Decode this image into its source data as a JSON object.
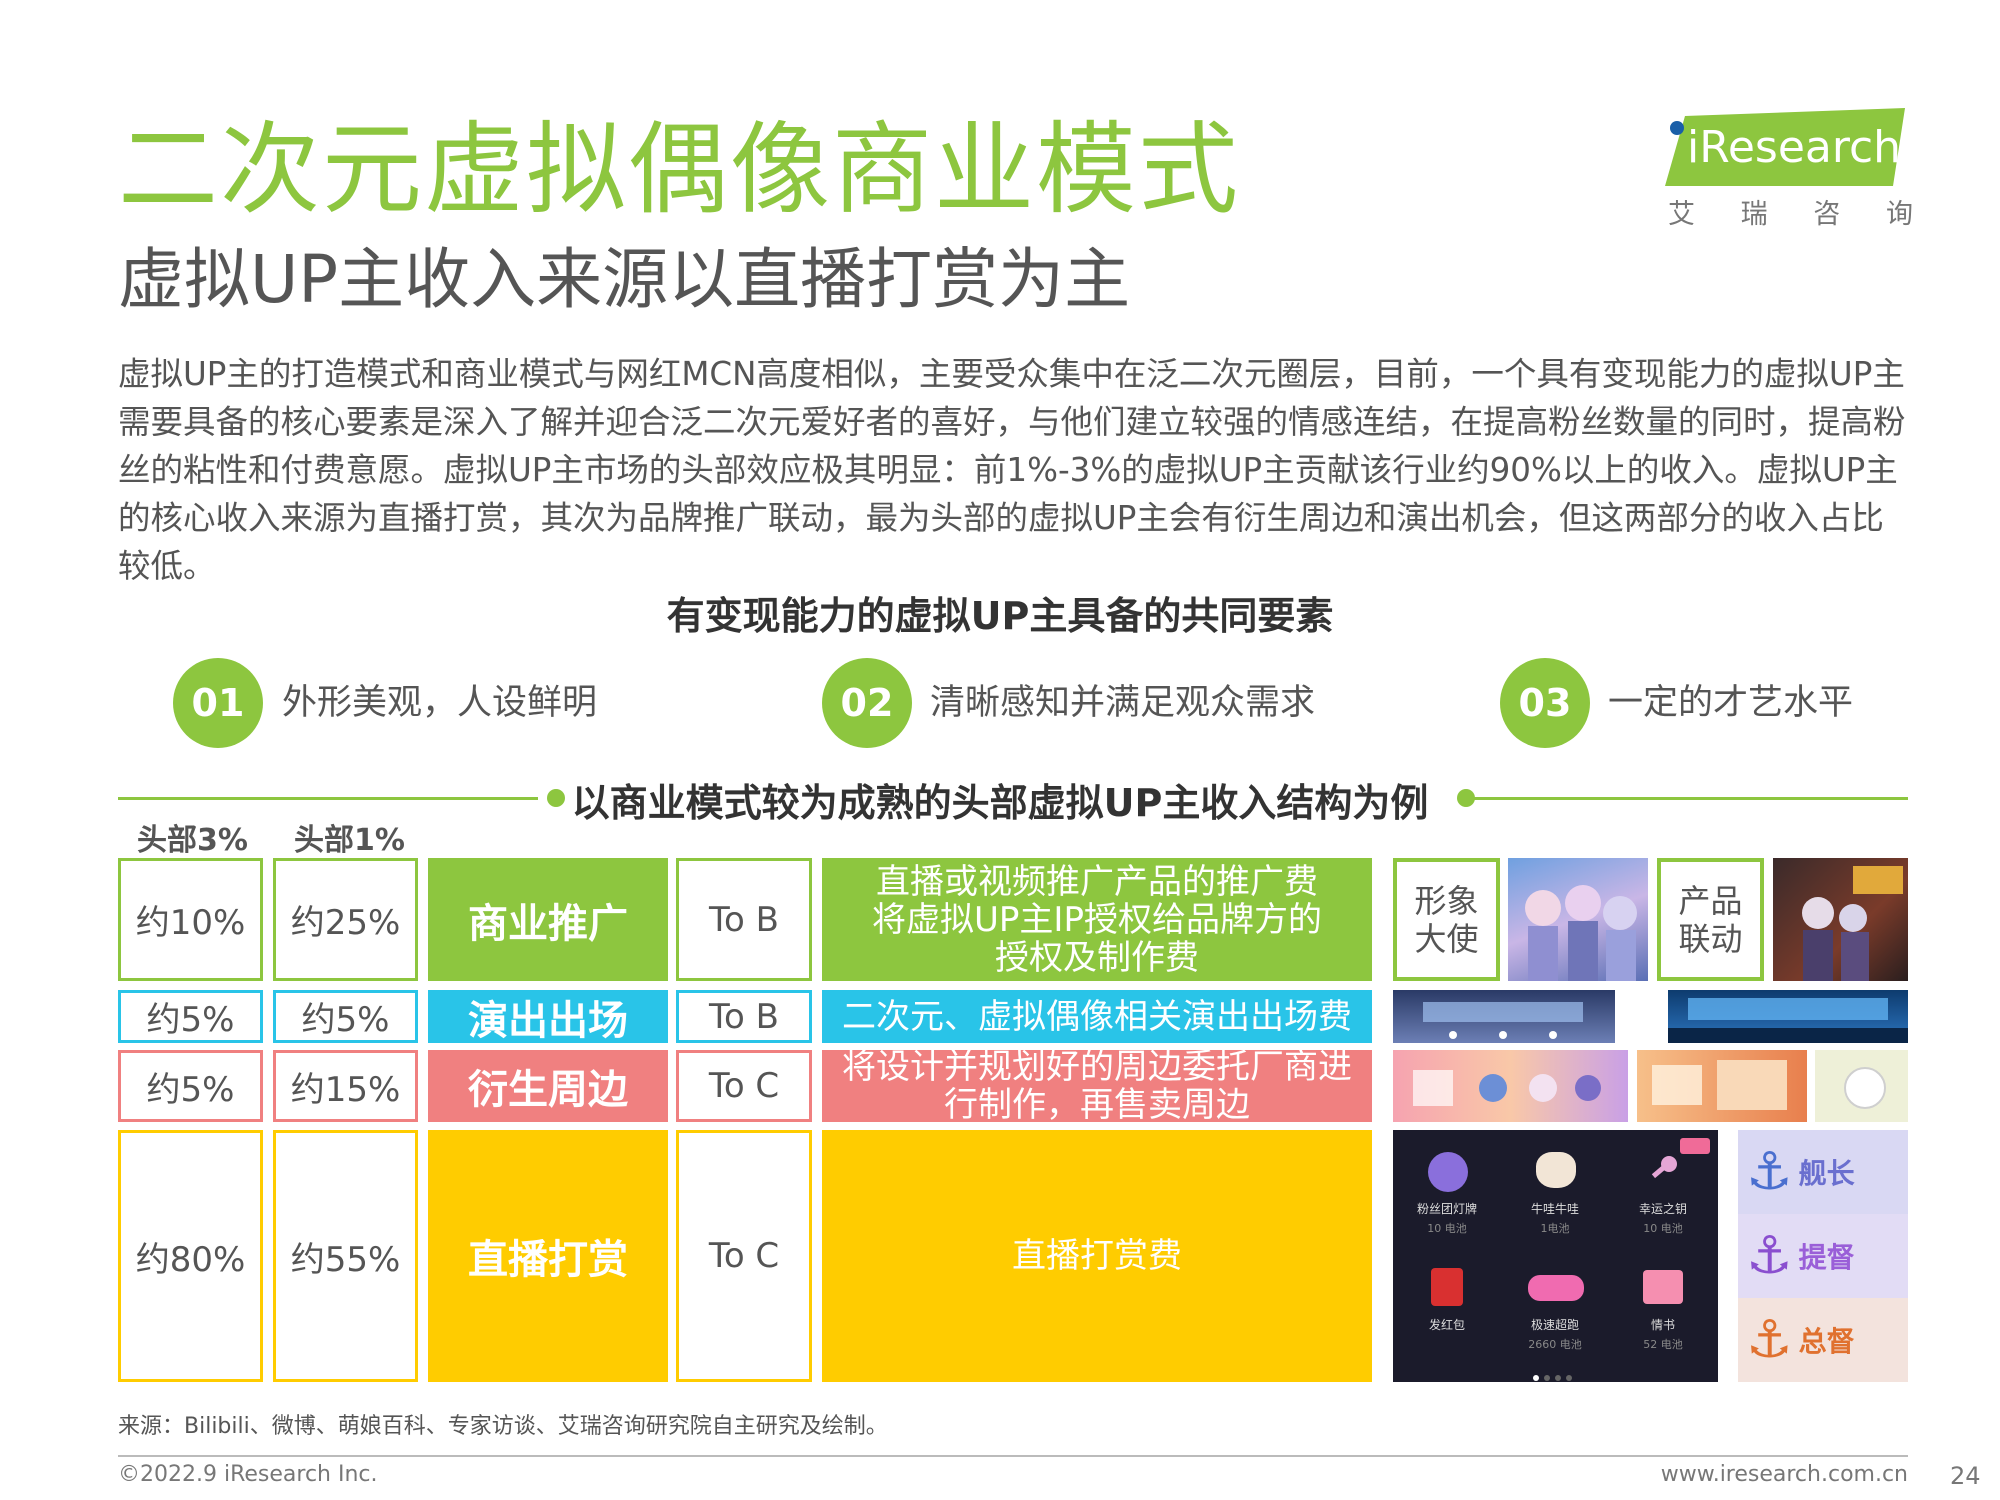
{
  "header": {
    "title": "二次元虚拟偶像商业模式",
    "subtitle": "虚拟UP主收入来源以直播打赏为主",
    "logo_text": "iResearch",
    "logo_cn": [
      "艾",
      "瑞",
      "咨",
      "询"
    ]
  },
  "body_paragraph": "虚拟UP主的打造模式和商业模式与网红MCN高度相似，主要受众集中在泛二次元圈层，目前，一个具有变现能力的虚拟UP主需要具备的核心要素是深入了解并迎合泛二次元爱好者的喜好，与他们建立较强的情感连结，在提高粉丝数量的同时，提高粉丝的粘性和付费意愿。虚拟UP主市场的头部效应极其明显：前1%-3%的虚拟UP主贡献该行业约90%以上的收入。虚拟UP主的核心收入来源为直播打赏，其次为品牌推广联动，最为头部的虚拟UP主会有衍生周边和演出机会，但这两部分的收入占比较低。",
  "features": {
    "heading": "有变现能力的虚拟UP主具备的共同要素",
    "items": [
      {
        "num": "01",
        "text": "外形美观，人设鲜明"
      },
      {
        "num": "02",
        "text": "清晰感知并满足观众需求"
      },
      {
        "num": "03",
        "text": "一定的才艺水平"
      }
    ]
  },
  "income": {
    "heading": "以商业模式较为成熟的头部虚拟UP主收入结构为例",
    "col_head3": "头部3%",
    "col_head1": "头部1%",
    "colors": {
      "green": "#8dc63f",
      "cyan": "#29c4e8",
      "pink": "#f08080",
      "yellow": "#ffcc00"
    },
    "rows": [
      {
        "head3": "约10%",
        "head1": "约25%",
        "category": "商业推广",
        "target": "To B",
        "description": "直播或视频推广产品的推广费\n将虚拟UP主IP授权给品牌方的\n授权及制作费"
      },
      {
        "head3": "约5%",
        "head1": "约5%",
        "category": "演出出场",
        "target": "To B",
        "description": "二次元、虚拟偶像相关演出出场费"
      },
      {
        "head3": "约5%",
        "head1": "约15%",
        "category": "衍生周边",
        "target": "To C",
        "description": "将设计并规划好的周边委托厂商进\n行制作，再售卖周边"
      },
      {
        "head3": "约80%",
        "head1": "约55%",
        "category": "直播打赏",
        "target": "To C",
        "description": "直播打赏费"
      }
    ],
    "role_labels": {
      "ambassador": "形象\n大使",
      "collab": "产品\n联动"
    },
    "gift_items": [
      {
        "name": "粉丝团灯牌",
        "price": "10 电池"
      },
      {
        "name": "牛哇牛哇",
        "price": "1电池"
      },
      {
        "name": "幸运之钥",
        "price": "10 电池"
      },
      {
        "name": "发红包",
        "price": ""
      },
      {
        "name": "极速超跑",
        "price": "2660 电池"
      },
      {
        "name": "情书",
        "price": "52 电池"
      }
    ],
    "ranks": [
      "舰长",
      "提督",
      "总督"
    ]
  },
  "footer": {
    "source": "来源：Bilibili、微博、萌娘百科、专家访谈、艾瑞咨询研究院自主研究及绘制。",
    "copyright": "©2022.9 iResearch Inc.",
    "url": "www.iresearch.com.cn",
    "page": "24"
  }
}
